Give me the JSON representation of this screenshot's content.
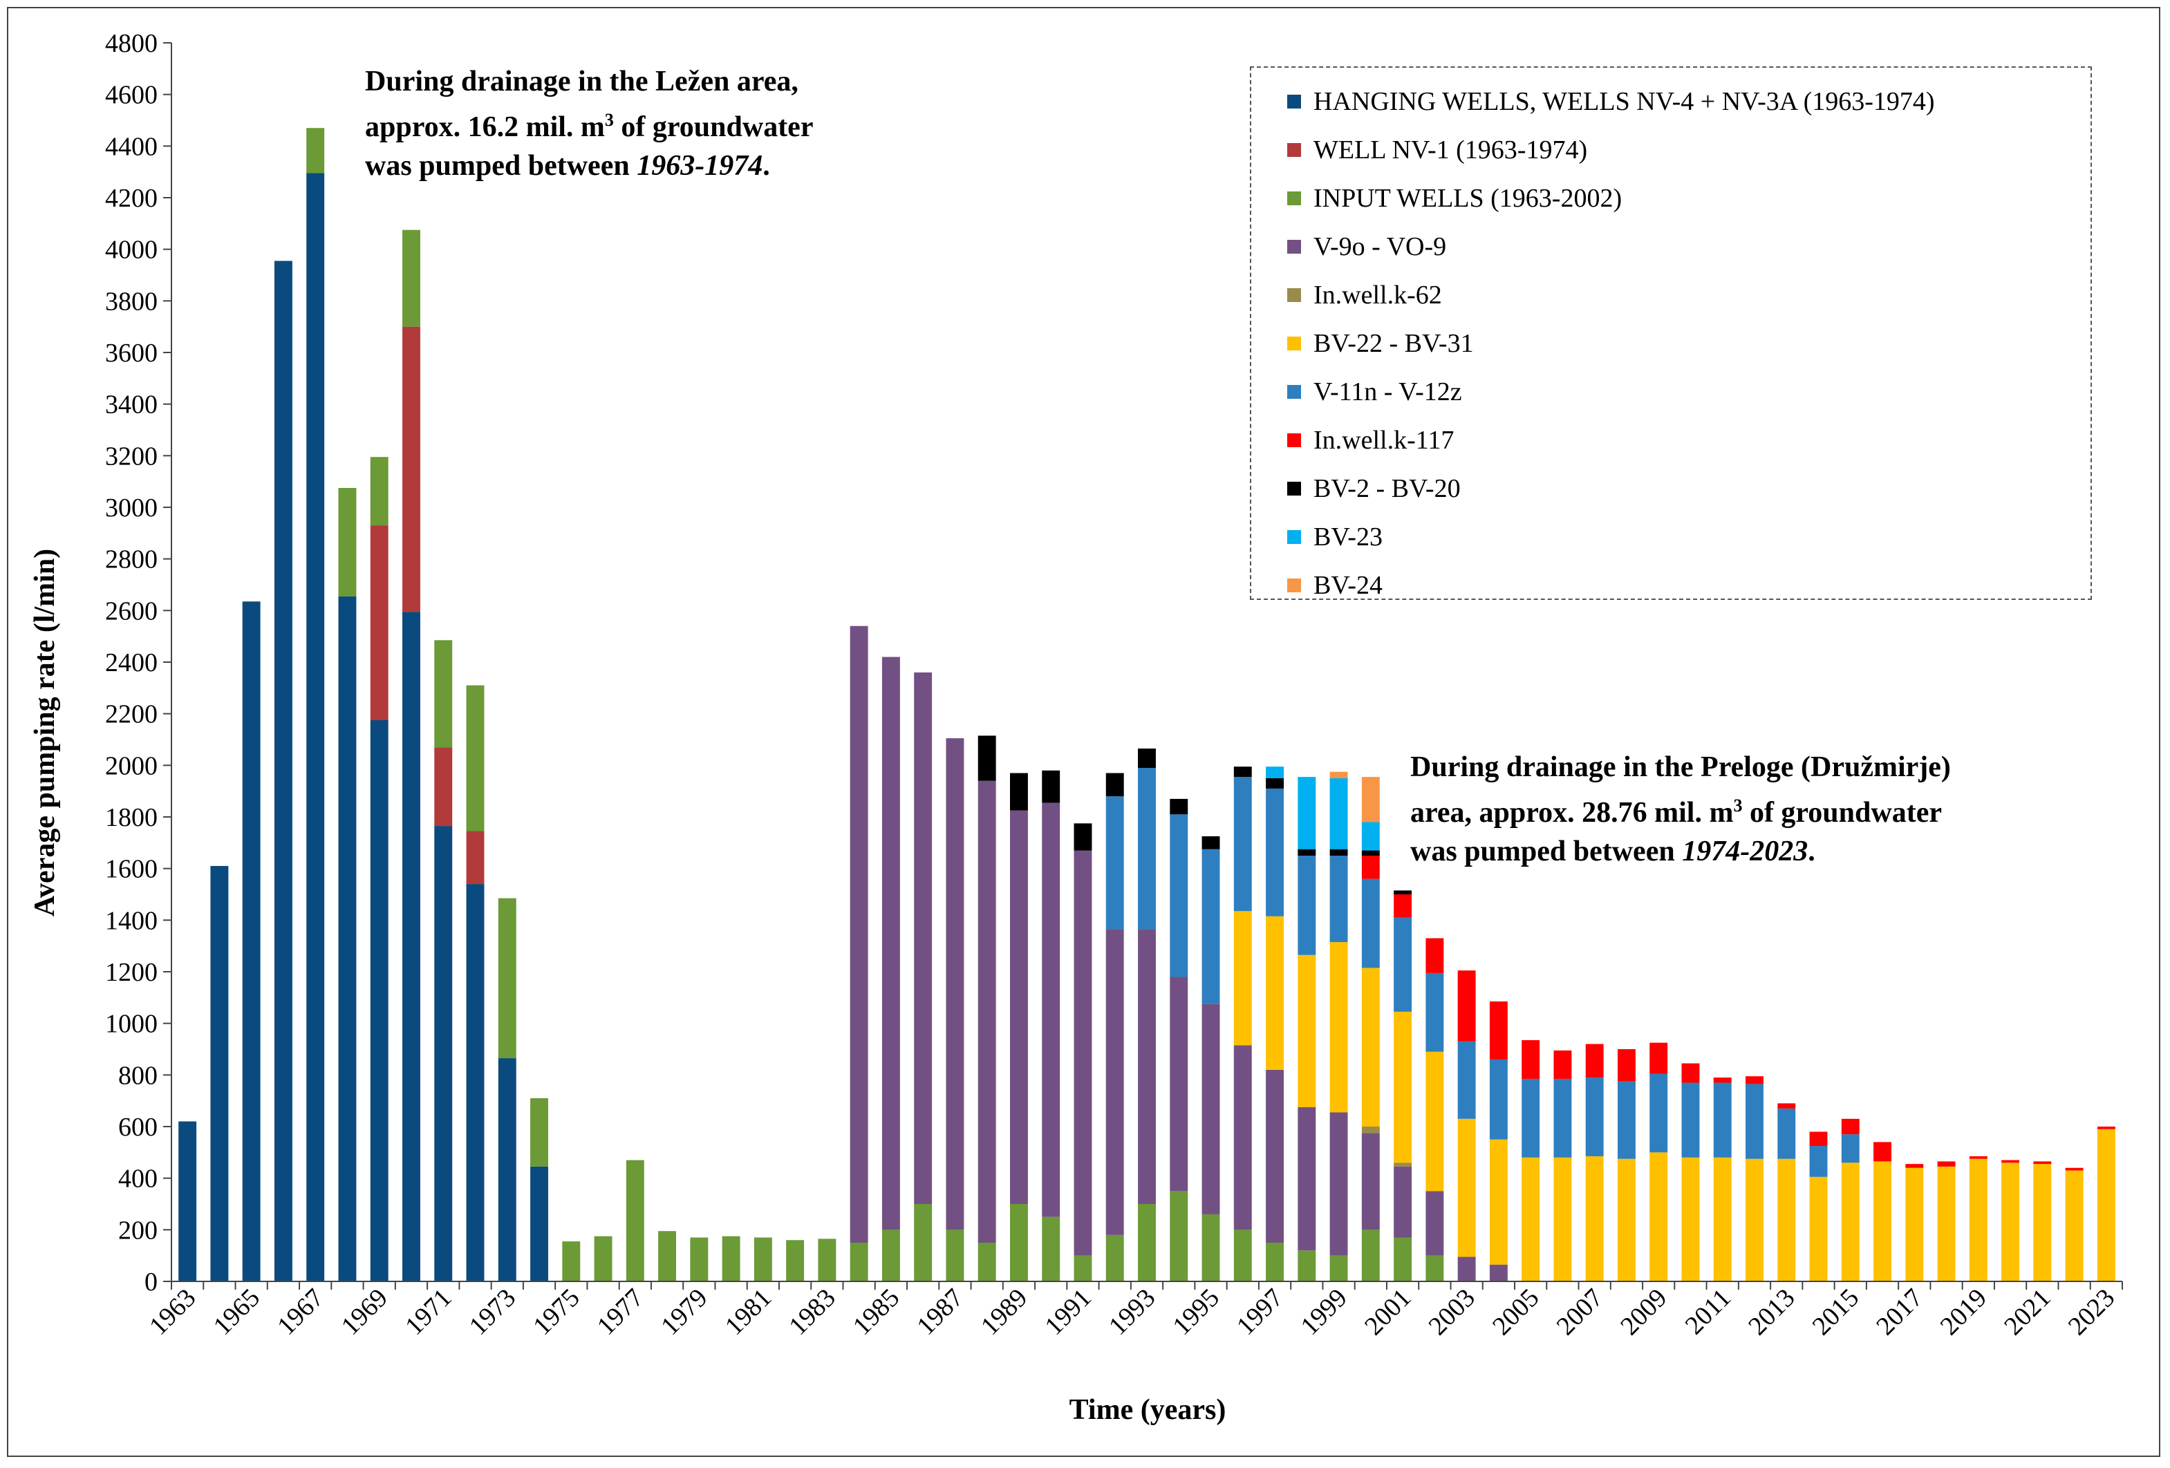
{
  "chart_data": {
    "type": "bar",
    "stacked": true,
    "title": "",
    "xlabel": "Time (years)",
    "ylabel": "Average pumping rate (l/min)",
    "ylim": [
      0,
      4800
    ],
    "ytick_step": 200,
    "grid": false,
    "legend_position": "top-right",
    "categories": [
      1963,
      1964,
      1965,
      1966,
      1967,
      1968,
      1969,
      1970,
      1971,
      1972,
      1973,
      1974,
      1975,
      1976,
      1977,
      1978,
      1979,
      1980,
      1981,
      1982,
      1983,
      1984,
      1985,
      1986,
      1987,
      1988,
      1989,
      1990,
      1991,
      1992,
      1993,
      1994,
      1995,
      1996,
      1997,
      1998,
      1999,
      2000,
      2001,
      2002,
      2003,
      2004,
      2005,
      2006,
      2007,
      2008,
      2009,
      2010,
      2011,
      2012,
      2013,
      2014,
      2015,
      2016,
      2017,
      2018,
      2019,
      2020,
      2021,
      2022,
      2023
    ],
    "xtick_labels": [
      "1963",
      "1965",
      "1967",
      "1969",
      "1971",
      "1973",
      "1975",
      "1977",
      "1979",
      "1981",
      "1983",
      "1985",
      "1987",
      "1989",
      "1991",
      "1993",
      "1995",
      "1997",
      "1999",
      "2001",
      "2003",
      "2005",
      "2007",
      "2009",
      "2011",
      "2013",
      "2015",
      "2017",
      "2019",
      "2021",
      "2023"
    ],
    "series": [
      {
        "name": "HANGING WELLS, WELLS NV-4 + NV-3A (1963-1974)",
        "color": "#0b4a7e",
        "values": [
          620,
          1610,
          2635,
          3955,
          4295,
          2655,
          2175,
          2595,
          1765,
          1540,
          865,
          445,
          0,
          0,
          0,
          0,
          0,
          0,
          0,
          0,
          0,
          0,
          0,
          0,
          0,
          0,
          0,
          0,
          0,
          0,
          0,
          0,
          0,
          0,
          0,
          0,
          0,
          0,
          0,
          0,
          0,
          0,
          0,
          0,
          0,
          0,
          0,
          0,
          0,
          0,
          0,
          0,
          0,
          0,
          0,
          0,
          0,
          0,
          0,
          0,
          0
        ]
      },
      {
        "name": "WELL NV-1 (1963-1974)",
        "color": "#b23a3a",
        "values": [
          0,
          0,
          0,
          0,
          0,
          0,
          755,
          1105,
          305,
          205,
          0,
          0,
          0,
          0,
          0,
          0,
          0,
          0,
          0,
          0,
          0,
          0,
          0,
          0,
          0,
          0,
          0,
          0,
          0,
          0,
          0,
          0,
          0,
          0,
          0,
          0,
          0,
          0,
          0,
          0,
          0,
          0,
          0,
          0,
          0,
          0,
          0,
          0,
          0,
          0,
          0,
          0,
          0,
          0,
          0,
          0,
          0,
          0,
          0,
          0,
          0
        ]
      },
      {
        "name": "INPUT WELLS (1963-2002)",
        "color": "#6b9a36",
        "values": [
          0,
          0,
          0,
          0,
          175,
          420,
          265,
          375,
          415,
          565,
          620,
          265,
          155,
          175,
          470,
          195,
          170,
          175,
          170,
          160,
          165,
          150,
          200,
          300,
          200,
          150,
          300,
          250,
          100,
          180,
          300,
          350,
          260,
          200,
          150,
          120,
          100,
          200,
          170,
          100,
          0,
          0,
          0,
          0,
          0,
          0,
          0,
          0,
          0,
          0,
          0,
          0,
          0,
          0,
          0,
          0,
          0,
          0,
          0,
          0,
          0
        ]
      },
      {
        "name": "V-9o - VO-9",
        "color": "#735083",
        "values": [
          0,
          0,
          0,
          0,
          0,
          0,
          0,
          0,
          0,
          0,
          0,
          0,
          0,
          0,
          0,
          0,
          0,
          0,
          0,
          0,
          0,
          2390,
          2220,
          2060,
          1905,
          1790,
          1525,
          1605,
          1570,
          1185,
          1065,
          830,
          815,
          715,
          670,
          555,
          555,
          375,
          275,
          250,
          95,
          65,
          0,
          0,
          0,
          0,
          0,
          0,
          0,
          0,
          0,
          0,
          0,
          0,
          0,
          0,
          0,
          0,
          0,
          0,
          0
        ]
      },
      {
        "name": "In.well.k-62",
        "color": "#9b8b4b",
        "values": [
          0,
          0,
          0,
          0,
          0,
          0,
          0,
          0,
          0,
          0,
          0,
          0,
          0,
          0,
          0,
          0,
          0,
          0,
          0,
          0,
          0,
          0,
          0,
          0,
          0,
          0,
          0,
          0,
          0,
          0,
          0,
          0,
          0,
          0,
          0,
          0,
          0,
          25,
          15,
          0,
          0,
          0,
          0,
          0,
          0,
          0,
          0,
          0,
          0,
          0,
          0,
          0,
          0,
          0,
          0,
          0,
          0,
          0,
          0,
          0,
          0
        ]
      },
      {
        "name": "BV-22 - BV-31",
        "color": "#ffc000",
        "values": [
          0,
          0,
          0,
          0,
          0,
          0,
          0,
          0,
          0,
          0,
          0,
          0,
          0,
          0,
          0,
          0,
          0,
          0,
          0,
          0,
          0,
          0,
          0,
          0,
          0,
          0,
          0,
          0,
          0,
          0,
          0,
          0,
          0,
          520,
          595,
          590,
          660,
          615,
          585,
          540,
          535,
          485,
          480,
          480,
          485,
          475,
          500,
          480,
          480,
          475,
          475,
          405,
          460,
          465,
          440,
          445,
          475,
          460,
          455,
          430,
          590
        ]
      },
      {
        "name": "V-11n - V-12z",
        "color": "#2e7fbf",
        "values": [
          0,
          0,
          0,
          0,
          0,
          0,
          0,
          0,
          0,
          0,
          0,
          0,
          0,
          0,
          0,
          0,
          0,
          0,
          0,
          0,
          0,
          0,
          0,
          0,
          0,
          0,
          0,
          0,
          0,
          515,
          625,
          630,
          600,
          520,
          495,
          385,
          335,
          345,
          365,
          305,
          300,
          310,
          305,
          305,
          305,
          300,
          305,
          290,
          290,
          290,
          195,
          120,
          110,
          0,
          0,
          0,
          0,
          0,
          0,
          0,
          0
        ]
      },
      {
        "name": "In.well.k-117",
        "color": "#ff0000",
        "values": [
          0,
          0,
          0,
          0,
          0,
          0,
          0,
          0,
          0,
          0,
          0,
          0,
          0,
          0,
          0,
          0,
          0,
          0,
          0,
          0,
          0,
          0,
          0,
          0,
          0,
          0,
          0,
          0,
          0,
          0,
          0,
          0,
          0,
          0,
          0,
          0,
          0,
          90,
          90,
          135,
          275,
          225,
          150,
          110,
          130,
          125,
          120,
          75,
          20,
          30,
          20,
          55,
          60,
          75,
          15,
          20,
          10,
          10,
          10,
          10,
          10
        ]
      },
      {
        "name": "BV-2 - BV-20",
        "color": "#000000",
        "values": [
          0,
          0,
          0,
          0,
          0,
          0,
          0,
          0,
          0,
          0,
          0,
          0,
          0,
          0,
          0,
          0,
          0,
          0,
          0,
          0,
          0,
          0,
          0,
          0,
          0,
          175,
          145,
          125,
          105,
          90,
          75,
          60,
          50,
          40,
          40,
          25,
          25,
          20,
          15,
          0,
          0,
          0,
          0,
          0,
          0,
          0,
          0,
          0,
          0,
          0,
          0,
          0,
          0,
          0,
          0,
          0,
          0,
          0,
          0,
          0,
          0
        ]
      },
      {
        "name": "BV-23",
        "color": "#00b0f0",
        "values": [
          0,
          0,
          0,
          0,
          0,
          0,
          0,
          0,
          0,
          0,
          0,
          0,
          0,
          0,
          0,
          0,
          0,
          0,
          0,
          0,
          0,
          0,
          0,
          0,
          0,
          0,
          0,
          0,
          0,
          0,
          0,
          0,
          0,
          0,
          45,
          280,
          275,
          110,
          0,
          0,
          0,
          0,
          0,
          0,
          0,
          0,
          0,
          0,
          0,
          0,
          0,
          0,
          0,
          0,
          0,
          0,
          0,
          0,
          0,
          0,
          0
        ]
      },
      {
        "name": "BV-24",
        "color": "#f79646",
        "values": [
          0,
          0,
          0,
          0,
          0,
          0,
          0,
          0,
          0,
          0,
          0,
          0,
          0,
          0,
          0,
          0,
          0,
          0,
          0,
          0,
          0,
          0,
          0,
          0,
          0,
          0,
          0,
          0,
          0,
          0,
          0,
          0,
          0,
          0,
          0,
          0,
          25,
          175,
          0,
          0,
          0,
          0,
          0,
          0,
          0,
          0,
          0,
          0,
          0,
          0,
          0,
          0,
          0,
          0,
          0,
          0,
          0,
          0,
          0,
          0,
          0
        ]
      }
    ],
    "annotations": [
      {
        "line1": "During drainage in the Ležen area,",
        "line2_pre": "approx. 16.2 mil. m",
        "line2_sup": "3",
        "line2_post": " of groundwater",
        "line3_pre": "was pumped between ",
        "line3_italic": "1963-1974",
        "line3_post": "."
      },
      {
        "line1": "During drainage in the Preloge (Družmirje)",
        "line2_pre": "area, approx. 28.76 mil. m",
        "line2_sup": "3",
        "line2_post": " of groundwater",
        "line3_pre": "was pumped between ",
        "line3_italic": "1974-2023",
        "line3_post": "."
      }
    ]
  }
}
